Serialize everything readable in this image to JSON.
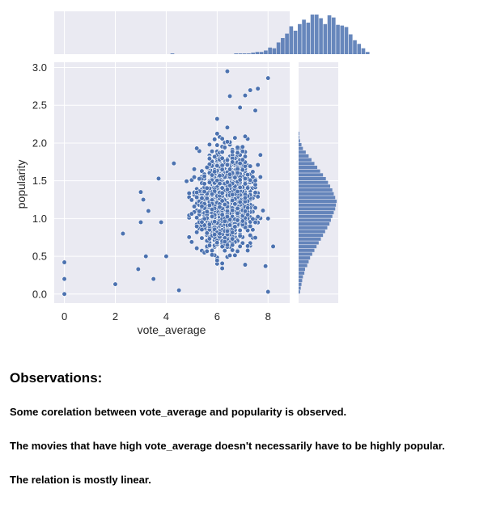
{
  "chart_data": {
    "type": "scatter",
    "kind": "jointplot",
    "xlabel": "vote_average",
    "ylabel": "popularity",
    "xlim": [
      -0.4,
      8.85
    ],
    "ylim": [
      -0.12,
      3.07
    ],
    "xticks": [
      "0",
      "2",
      "4",
      "6",
      "8"
    ],
    "yticks": [
      "0.0",
      "0.5",
      "1.0",
      "1.5",
      "2.0",
      "2.5",
      "3.0"
    ],
    "grid": true,
    "background": "#eaeaf2",
    "point_color": "#4c72b0",
    "hist_color": "#4c72b0",
    "highlighted_points": [
      {
        "x": 0.0,
        "y": 0.42
      },
      {
        "x": 0.0,
        "y": 0.2
      },
      {
        "x": 0.0,
        "y": 0.0
      },
      {
        "x": 2.0,
        "y": 0.13
      },
      {
        "x": 2.3,
        "y": 0.8
      },
      {
        "x": 2.9,
        "y": 0.33
      },
      {
        "x": 3.0,
        "y": 1.35
      },
      {
        "x": 3.1,
        "y": 1.25
      },
      {
        "x": 3.0,
        "y": 0.95
      },
      {
        "x": 3.2,
        "y": 0.5
      },
      {
        "x": 3.5,
        "y": 0.2
      },
      {
        "x": 3.7,
        "y": 1.53
      },
      {
        "x": 6.4,
        "y": 2.95
      },
      {
        "x": 6.5,
        "y": 2.62
      },
      {
        "x": 8.0,
        "y": 2.86
      },
      {
        "x": 7.3,
        "y": 2.7
      },
      {
        "x": 7.6,
        "y": 2.72
      },
      {
        "x": 7.1,
        "y": 2.63
      },
      {
        "x": 8.2,
        "y": 0.63
      },
      {
        "x": 8.0,
        "y": 0.03
      },
      {
        "x": 7.9,
        "y": 0.37
      },
      {
        "x": 6.9,
        "y": 2.47
      },
      {
        "x": 7.5,
        "y": 2.43
      },
      {
        "x": 5.2,
        "y": 1.93
      },
      {
        "x": 4.3,
        "y": 1.73
      },
      {
        "x": 4.0,
        "y": 0.5
      },
      {
        "x": 3.8,
        "y": 0.95
      },
      {
        "x": 3.3,
        "y": 1.1
      },
      {
        "x": 4.5,
        "y": 0.05
      },
      {
        "x": 6.0,
        "y": 2.32
      }
    ],
    "bulk_cloud": {
      "x_range": [
        4.0,
        8.6
      ],
      "x_center": 6.35,
      "y_range": [
        0.0,
        2.3
      ],
      "y_center": 1.25
    },
    "x_hist": {
      "bin_edges_start": 0.0,
      "bin_width": 0.1667,
      "counts": [
        0,
        0,
        0,
        0,
        0,
        0,
        0,
        0,
        0,
        0,
        0,
        0,
        0,
        0,
        0,
        0,
        0,
        0,
        0,
        0,
        0,
        0,
        0,
        0,
        0,
        1,
        0,
        0,
        0,
        0,
        0,
        0,
        0,
        0,
        0,
        0,
        0,
        0,
        0,
        0,
        1,
        1,
        1,
        1,
        2,
        3,
        3,
        5,
        9,
        8,
        16,
        22,
        28,
        38,
        32,
        41,
        47,
        43,
        54,
        54,
        49,
        41,
        53,
        50,
        40,
        39,
        37,
        27,
        19,
        14,
        8,
        3,
        0
      ]
    },
    "y_hist": {
      "bin_edges_start": 0.0,
      "bin_width": 0.05,
      "counts": [
        2,
        3,
        4,
        5,
        6,
        8,
        9,
        12,
        14,
        16,
        19,
        22,
        25,
        28,
        31,
        34,
        37,
        40,
        43,
        45,
        47,
        49,
        51,
        52,
        53,
        51,
        49,
        47,
        44,
        41,
        38,
        34,
        30,
        26,
        22,
        18,
        14,
        10,
        6,
        4,
        2,
        1,
        1,
        0,
        0,
        0,
        0,
        0,
        0,
        0,
        0,
        0,
        0,
        0,
        0,
        0,
        0,
        0,
        0,
        0
      ]
    }
  },
  "observations": {
    "heading": "Observations:",
    "items": [
      "Some corelation between vote_average and popularity is observed.",
      "The movies that have high vote_average doesn't necessarily have to be highly popular.",
      "The relation is mostly linear."
    ]
  }
}
